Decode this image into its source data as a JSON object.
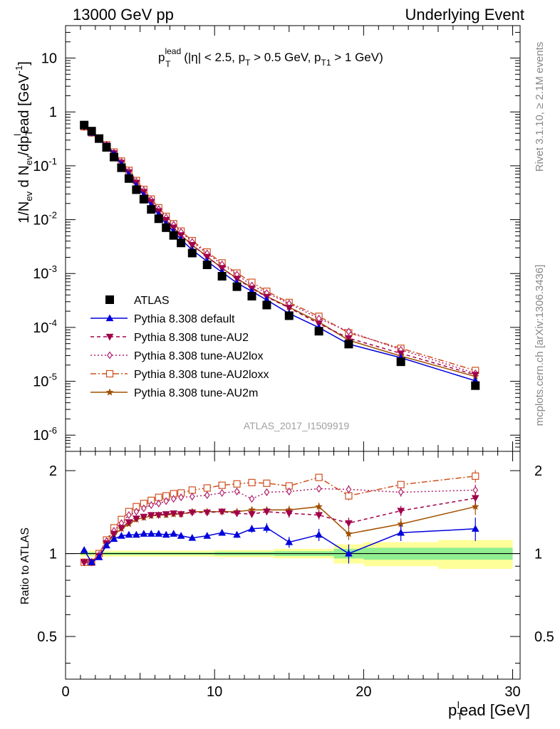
{
  "header": {
    "left": "13000 GeV pp",
    "right": "Underlying Event"
  },
  "side": {
    "rivet": "Rivet 3.1.10, ≥ 2.1M events",
    "mcplots": "mcplots.cern.ch [arXiv:1306.3436]"
  },
  "plot_label": {
    "p": "p",
    "sup": "lead",
    "sub": "T",
    "rest1": " (|η| < 2.5, p",
    "rest1_sub": "T",
    "rest2": " > 0.5 GeV, p",
    "rest2_sub": "T1",
    "rest3": " > 1 GeV)"
  },
  "watermark": "ATLAS_2017_I1509919",
  "ylabel_top": "1/N_ev d N_ev/dp_T^lead [GeV^-1]",
  "ylabel_bottom": "Ratio to ATLAS",
  "xlabel": "p_T^lead [GeV]",
  "legend": [
    {
      "key": "atlas",
      "label": "ATLAS"
    },
    {
      "key": "def",
      "label": "Pythia 8.308 default"
    },
    {
      "key": "au2",
      "label": "Pythia 8.308 tune-AU2"
    },
    {
      "key": "au2lox",
      "label": "Pythia 8.308 tune-AU2lox"
    },
    {
      "key": "au2loxx",
      "label": "Pythia 8.308 tune-AU2loxx"
    },
    {
      "key": "au2m",
      "label": "Pythia 8.308 tune-AU2m"
    }
  ],
  "colors": {
    "atlas": "#000000",
    "def": "#0000dd",
    "au2": "#a0004a",
    "au2lox": "#b0206a",
    "au2loxx": "#d05020",
    "au2m": "#a05000",
    "band_inner": "#90ee90",
    "band_outer": "#ffff99"
  },
  "chart_data": {
    "type": "line",
    "xlim": [
      0,
      30.5
    ],
    "ylim_top": [
      5e-07,
      40
    ],
    "ylim_ratio": [
      0.35,
      2.35
    ],
    "log_y_top": true,
    "log_y_ratio": true,
    "x_ticks": [
      0,
      10,
      20,
      30
    ],
    "y_ticks_top": [
      {
        "v": 10,
        "label": "10"
      },
      {
        "v": 1,
        "label": "1"
      },
      {
        "v": 0.1,
        "label": "10^-1"
      },
      {
        "v": 0.01,
        "label": "10^-2"
      },
      {
        "v": 0.001,
        "label": "10^-3"
      },
      {
        "v": 0.0001,
        "label": "10^-4"
      },
      {
        "v": 1e-05,
        "label": "10^-5"
      },
      {
        "v": 1e-06,
        "label": "10^-6"
      }
    ],
    "y_ticks_ratio": [
      {
        "v": 0.5,
        "label": "0.5"
      },
      {
        "v": 1,
        "label": "1"
      },
      {
        "v": 2,
        "label": "2"
      }
    ],
    "x": [
      1.25,
      1.75,
      2.25,
      2.75,
      3.25,
      3.75,
      4.25,
      4.75,
      5.25,
      5.75,
      6.25,
      6.75,
      7.25,
      7.75,
      8.5,
      9.5,
      10.5,
      11.5,
      12.5,
      13.5,
      15.0,
      17.0,
      19.0,
      22.5,
      27.5
    ],
    "atlas": [
      0.57,
      0.44,
      0.32,
      0.22,
      0.145,
      0.092,
      0.058,
      0.036,
      0.024,
      0.0155,
      0.0104,
      0.0071,
      0.0051,
      0.0037,
      0.0024,
      0.00145,
      0.00089,
      0.00057,
      0.00038,
      0.00026,
      0.000165,
      8.5e-05,
      4.9e-05,
      2.3e-05,
      8.3e-06
    ],
    "ratios": {
      "def": [
        1.03,
        0.93,
        0.97,
        1.07,
        1.13,
        1.16,
        1.17,
        1.17,
        1.18,
        1.18,
        1.18,
        1.17,
        1.18,
        1.16,
        1.14,
        1.16,
        1.19,
        1.17,
        1.23,
        1.24,
        1.1,
        1.17,
        1.0,
        1.19,
        1.23
      ],
      "au2": [
        0.93,
        0.93,
        0.98,
        1.09,
        1.18,
        1.24,
        1.3,
        1.34,
        1.36,
        1.38,
        1.38,
        1.39,
        1.4,
        1.39,
        1.41,
        1.41,
        1.42,
        1.4,
        1.39,
        1.42,
        1.4,
        1.38,
        1.29,
        1.43,
        1.59
      ],
      "au2lox": [
        0.93,
        0.93,
        0.99,
        1.11,
        1.21,
        1.29,
        1.38,
        1.42,
        1.46,
        1.5,
        1.52,
        1.55,
        1.58,
        1.6,
        1.61,
        1.63,
        1.66,
        1.68,
        1.58,
        1.67,
        1.68,
        1.72,
        1.71,
        1.67,
        1.7
      ],
      "au2loxx": [
        0.93,
        0.93,
        1.0,
        1.12,
        1.24,
        1.33,
        1.42,
        1.48,
        1.52,
        1.56,
        1.6,
        1.62,
        1.65,
        1.66,
        1.7,
        1.73,
        1.77,
        1.79,
        1.81,
        1.8,
        1.76,
        1.89,
        1.62,
        1.78,
        1.91
      ],
      "au2m": [
        0.93,
        0.93,
        0.98,
        1.08,
        1.17,
        1.23,
        1.28,
        1.33,
        1.35,
        1.37,
        1.38,
        1.38,
        1.39,
        1.39,
        1.42,
        1.42,
        1.42,
        1.42,
        1.44,
        1.44,
        1.44,
        1.48,
        1.18,
        1.28,
        1.48
      ]
    },
    "ratio_errors": {
      "def": [
        0.01,
        0.01,
        0.01,
        0.01,
        0.01,
        0.01,
        0.01,
        0.01,
        0.01,
        0.01,
        0.01,
        0.01,
        0.01,
        0.01,
        0.015,
        0.02,
        0.025,
        0.03,
        0.04,
        0.05,
        0.05,
        0.06,
        0.08,
        0.08,
        0.12
      ],
      "au2": [
        0.01,
        0.01,
        0.01,
        0.01,
        0.01,
        0.01,
        0.01,
        0.01,
        0.01,
        0.01,
        0.01,
        0.01,
        0.01,
        0.01,
        0.015,
        0.02,
        0.025,
        0.03,
        0.04,
        0.04,
        0.05,
        0.05,
        0.06,
        0.06,
        0.08
      ],
      "au2lox": [
        0.01,
        0.01,
        0.01,
        0.01,
        0.01,
        0.01,
        0.01,
        0.01,
        0.01,
        0.01,
        0.01,
        0.01,
        0.01,
        0.01,
        0.015,
        0.02,
        0.025,
        0.03,
        0.04,
        0.04,
        0.05,
        0.05,
        0.06,
        0.06,
        0.08
      ],
      "au2loxx": [
        0.01,
        0.01,
        0.01,
        0.01,
        0.01,
        0.01,
        0.01,
        0.01,
        0.01,
        0.01,
        0.01,
        0.01,
        0.01,
        0.01,
        0.015,
        0.02,
        0.025,
        0.03,
        0.03,
        0.03,
        0.04,
        0.04,
        0.06,
        0.05,
        0.1
      ],
      "au2m": [
        0.01,
        0.01,
        0.01,
        0.01,
        0.01,
        0.01,
        0.01,
        0.01,
        0.01,
        0.01,
        0.01,
        0.01,
        0.01,
        0.01,
        0.015,
        0.02,
        0.025,
        0.03,
        0.04,
        0.04,
        0.05,
        0.05,
        0.06,
        0.06,
        0.1
      ]
    },
    "band": [
      {
        "x0": 1.0,
        "x1": 10.0,
        "inner": 0.01,
        "outer": 0.025
      },
      {
        "x0": 10.0,
        "x1": 14.0,
        "inner": 0.015,
        "outer": 0.03
      },
      {
        "x0": 14.0,
        "x1": 18.0,
        "inner": 0.02,
        "outer": 0.04
      },
      {
        "x0": 18.0,
        "x1": 20.0,
        "inner": 0.04,
        "outer": 0.08
      },
      {
        "x0": 20.0,
        "x1": 25.0,
        "inner": 0.05,
        "outer": 0.1
      },
      {
        "x0": 25.0,
        "x1": 30.0,
        "inner": 0.05,
        "outer": 0.12
      }
    ]
  }
}
